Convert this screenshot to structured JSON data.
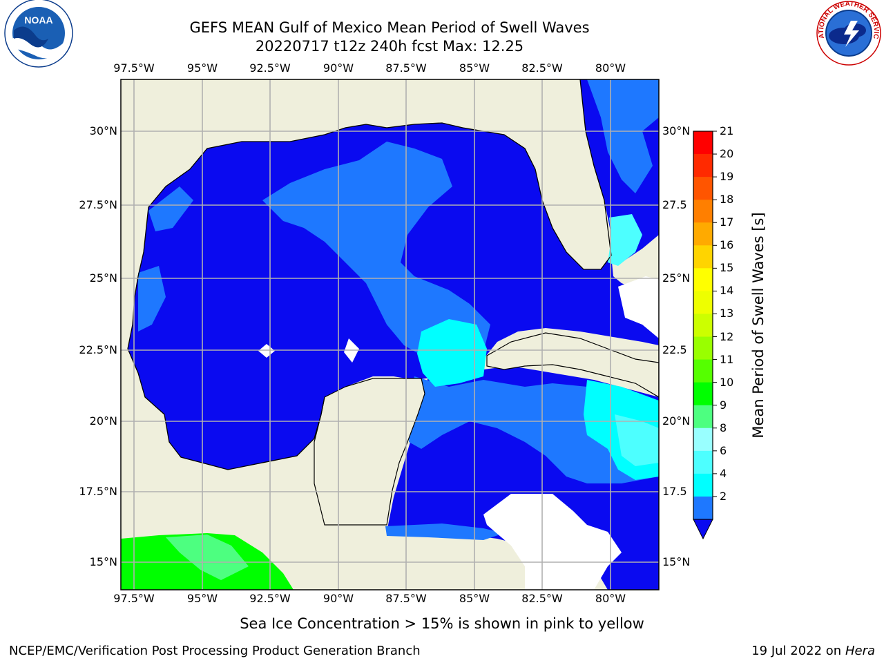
{
  "header": {
    "title": "GEFS MEAN Gulf of Mexico Mean Period of Swell Waves",
    "subtitle": "20220717 t12z 240h fcst   Max: 12.25"
  },
  "logos": {
    "left": {
      "name": "NOAA",
      "ring_text": "NATIONAL OCEANIC AND ATMOSPHERIC ADMINISTRATION · U.S. DEPARTMENT OF COMMERCE"
    },
    "right": {
      "name": "NATIONAL WEATHER SERVICE"
    }
  },
  "map": {
    "lon_labels": [
      "97.5°W",
      "95°W",
      "92.5°W",
      "90°W",
      "87.5°W",
      "85°W",
      "82.5°W",
      "80°W"
    ],
    "lat_labels_left": [
      "30°N",
      "27.5°N",
      "25°N",
      "22.5°N",
      "20°N",
      "17.5°N",
      "15°N"
    ],
    "lat_labels_right": [
      "30°N",
      "27.5",
      "25°N",
      "22.5",
      "20°N",
      "17.5",
      "15°N"
    ],
    "colors": {
      "land": "#efefdc",
      "deep_blue": "#0a0af0",
      "mid_blue": "#1e78ff",
      "cyan": "#00ffff",
      "light_cyan": "#4dffff",
      "green": "#00ff00",
      "light_green": "#4dff80"
    }
  },
  "colorbar": {
    "label": "Mean Period of Swell Waves [s]",
    "ticks": [
      "21",
      "20",
      "19",
      "18",
      "17",
      "16",
      "15",
      "14",
      "13",
      "12",
      "11",
      "10",
      "9",
      "8",
      "6",
      "4",
      "2"
    ],
    "colors": [
      "#ff0000",
      "#ff2a00",
      "#ff5500",
      "#ff7f00",
      "#ffaa00",
      "#ffd400",
      "#ffff00",
      "#eeff00",
      "#ccff00",
      "#99ff00",
      "#55ff00",
      "#00ff00",
      "#4dff80",
      "#99ffff",
      "#4dffff",
      "#00ffff",
      "#1e78ff"
    ],
    "under_color": "#0a0af0"
  },
  "footer": {
    "caption": "Sea Ice Concentration > 15% is shown in pink to yellow",
    "org": "NCEP/EMC/Verification Post Processing Product Generation Branch",
    "date": "19 Jul 2022 on",
    "host": "Hera"
  }
}
